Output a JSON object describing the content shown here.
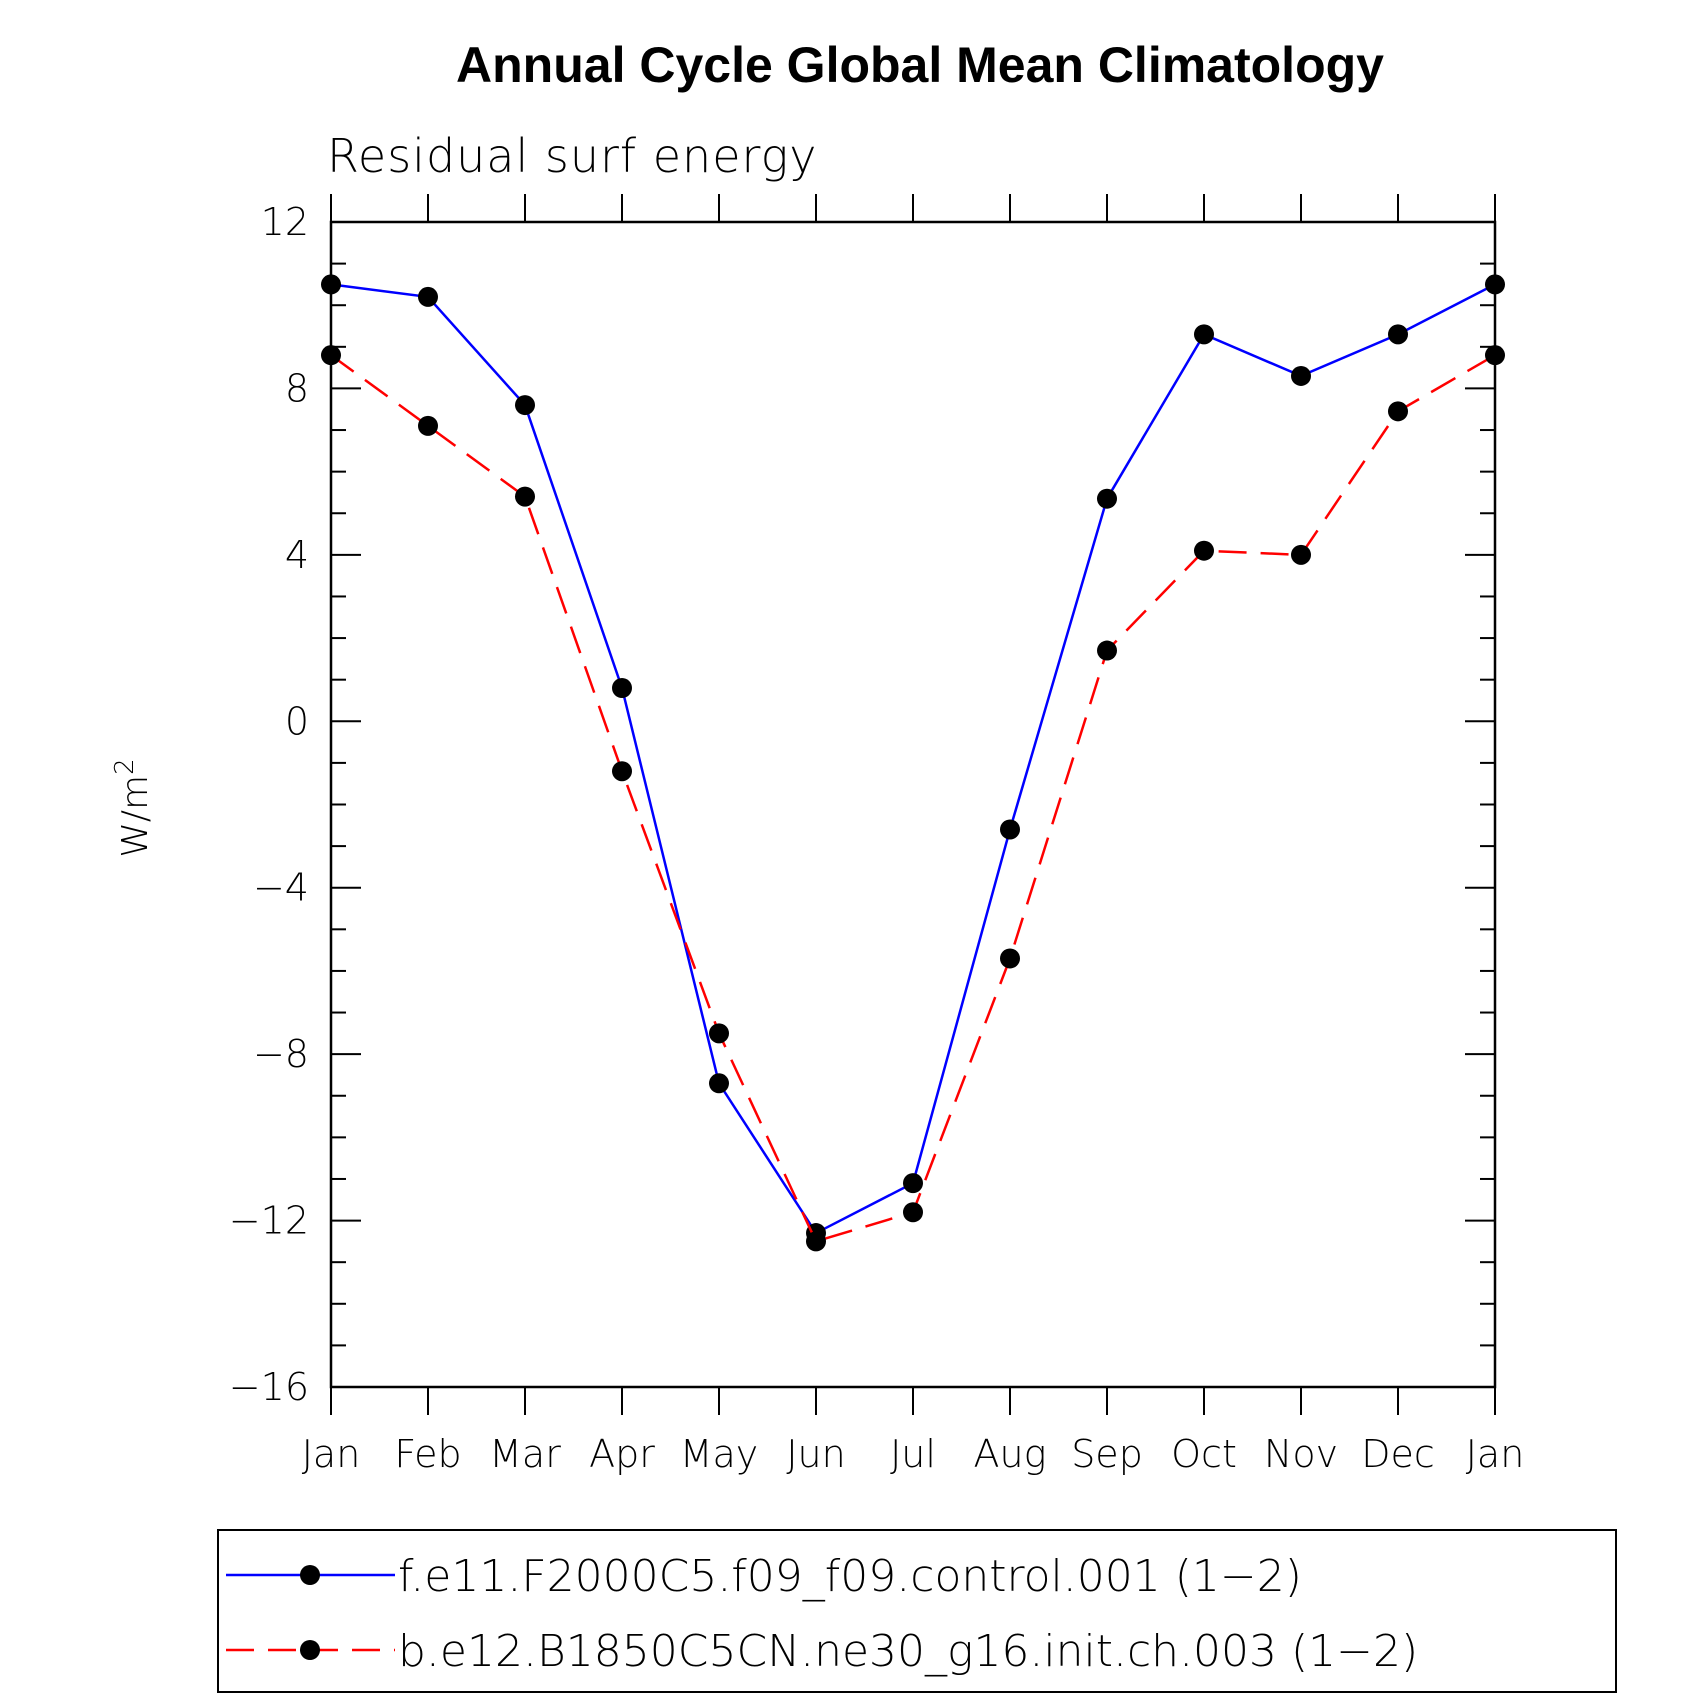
{
  "chart_data": {
    "type": "line",
    "title": "Annual Cycle Global Mean Climatology",
    "subtitle": "Residual surf energy",
    "ylabel": "W/m",
    "ylabel_superscript": "2",
    "xlabel": "",
    "ylim": [
      -16,
      12
    ],
    "yticks": [
      12,
      8,
      4,
      0,
      -4,
      -8,
      -12,
      -16
    ],
    "ytick_labels": [
      "12",
      "8",
      "4",
      "0",
      "−4",
      "−8",
      "−12",
      "−16"
    ],
    "categories": [
      "Jan",
      "Feb",
      "Mar",
      "Apr",
      "May",
      "Jun",
      "Jul",
      "Aug",
      "Sep",
      "Oct",
      "Nov",
      "Dec",
      "Jan"
    ],
    "series": [
      {
        "name": "f.e11.F2000C5.f09_f09.control.001 (1−2)",
        "color": "#0000ff",
        "dash": "solid",
        "values": [
          10.5,
          10.2,
          7.6,
          0.8,
          -8.7,
          -12.3,
          -11.1,
          -2.6,
          5.35,
          9.3,
          8.3,
          9.3,
          10.5
        ]
      },
      {
        "name": "b.e12.B1850C5CN.ne30_g16.init.ch.003 (1−2)",
        "color": "#ff0000",
        "dash": "dashed",
        "values": [
          8.8,
          7.1,
          5.4,
          -1.2,
          -7.5,
          -12.5,
          -11.8,
          -5.7,
          1.7,
          4.1,
          4.0,
          7.45,
          8.8
        ]
      }
    ],
    "grid": false,
    "legend_position": "bottom"
  }
}
